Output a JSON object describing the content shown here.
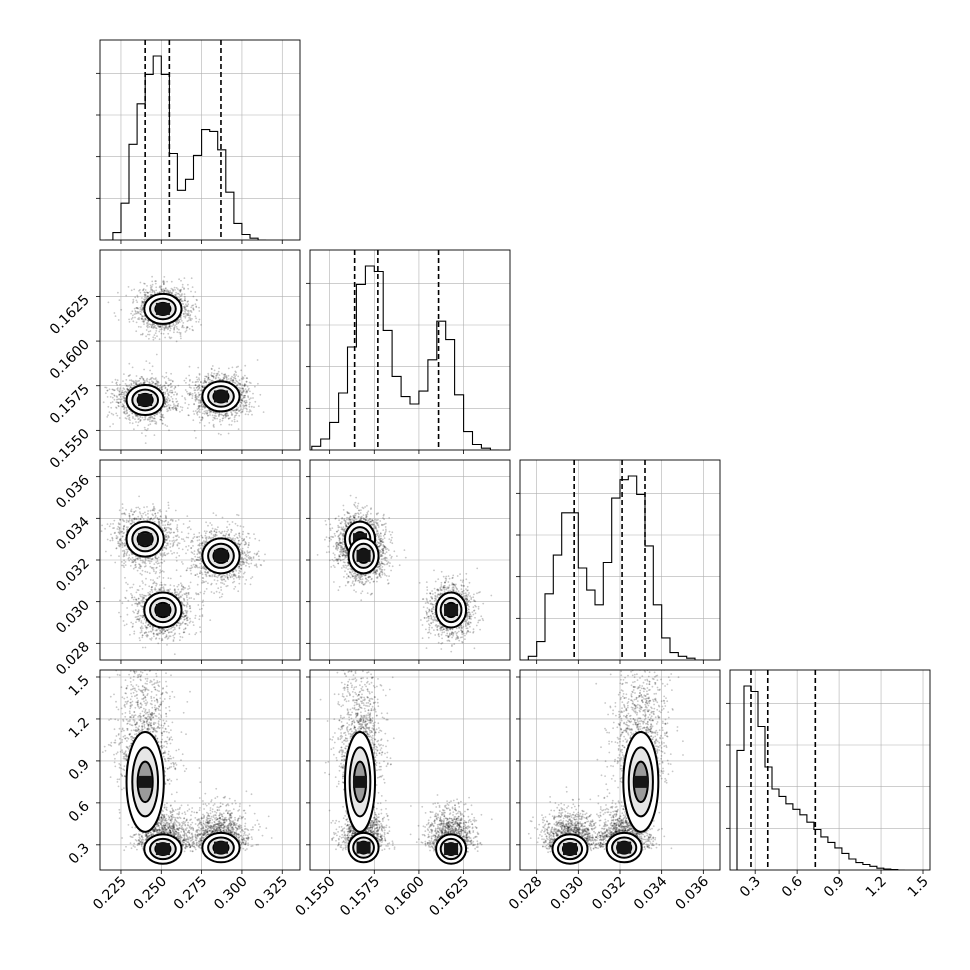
{
  "chart_data": {
    "type": "corner",
    "grid": true,
    "parameters": [
      {
        "range": [
          0.212,
          0.336
        ],
        "ticks": [
          0.225,
          0.25,
          0.275,
          0.3,
          0.325
        ],
        "tick_labels": [
          "0.225",
          "0.250",
          "0.275",
          "0.300",
          "0.325"
        ],
        "quantiles": [
          0.24,
          0.255,
          0.287
        ],
        "hist": {
          "bins": [
            0.215,
            0.22,
            0.225,
            0.23,
            0.235,
            0.24,
            0.245,
            0.25,
            0.255,
            0.26,
            0.265,
            0.27,
            0.275,
            0.28,
            0.285,
            0.29,
            0.295,
            0.3,
            0.305,
            0.31,
            0.315
          ],
          "counts": [
            0,
            0.04,
            0.2,
            0.52,
            0.74,
            0.9,
            1.0,
            0.9,
            0.47,
            0.27,
            0.33,
            0.46,
            0.6,
            0.59,
            0.49,
            0.26,
            0.09,
            0.03,
            0.01,
            0
          ]
        }
      },
      {
        "range": [
          0.1539,
          0.1651
        ],
        "ticks": [
          0.155,
          0.1575,
          0.16,
          0.1625
        ],
        "tick_labels": [
          "0.1550",
          "0.1575",
          "0.1600",
          "0.1625"
        ],
        "quantiles": [
          0.1564,
          0.1577,
          0.1611
        ],
        "hist": {
          "bins": [
            0.154,
            0.1545,
            0.155,
            0.1555,
            0.156,
            0.1565,
            0.157,
            0.1575,
            0.158,
            0.1585,
            0.159,
            0.1595,
            0.16,
            0.1605,
            0.161,
            0.1615,
            0.162,
            0.1625,
            0.163,
            0.1635,
            0.164,
            0.1645
          ],
          "counts": [
            0.02,
            0.06,
            0.15,
            0.31,
            0.56,
            0.9,
            1.0,
            0.97,
            0.65,
            0.4,
            0.29,
            0.25,
            0.32,
            0.49,
            0.7,
            0.6,
            0.3,
            0.1,
            0.03,
            0.01,
            0
          ]
        }
      },
      {
        "range": [
          0.0272,
          0.0368
        ],
        "ticks": [
          0.028,
          0.03,
          0.032,
          0.034,
          0.036
        ],
        "tick_labels": [
          "0.028",
          "0.030",
          "0.032",
          "0.034",
          "0.036"
        ],
        "quantiles": [
          0.0298,
          0.0321,
          0.0332
        ],
        "hist": {
          "bins": [
            0.0272,
            0.0276,
            0.028,
            0.0284,
            0.0288,
            0.0292,
            0.0296,
            0.03,
            0.0304,
            0.0308,
            0.0312,
            0.0316,
            0.032,
            0.0324,
            0.0328,
            0.0332,
            0.0336,
            0.034,
            0.0344,
            0.0348,
            0.0352,
            0.0356,
            0.036
          ],
          "counts": [
            0,
            0.02,
            0.1,
            0.36,
            0.57,
            0.8,
            0.8,
            0.5,
            0.38,
            0.3,
            0.53,
            0.88,
            0.98,
            1.0,
            0.9,
            0.62,
            0.3,
            0.12,
            0.04,
            0.02,
            0.01,
            0
          ]
        }
      },
      {
        "range": [
          0.12,
          1.55
        ],
        "ticks": [
          0.3,
          0.6,
          0.9,
          1.2,
          1.5
        ],
        "tick_labels": [
          "0.3",
          "0.6",
          "0.9",
          "1.2",
          "1.5"
        ],
        "quantiles": [
          0.27,
          0.39,
          0.73
        ],
        "hist": {
          "bins": [
            0.17,
            0.22,
            0.27,
            0.32,
            0.37,
            0.42,
            0.47,
            0.52,
            0.57,
            0.62,
            0.67,
            0.72,
            0.77,
            0.82,
            0.87,
            0.92,
            0.97,
            1.02,
            1.07,
            1.12,
            1.17,
            1.22,
            1.27,
            1.32,
            1.37
          ],
          "counts": [
            0.65,
            1.0,
            0.97,
            0.78,
            0.56,
            0.44,
            0.4,
            0.36,
            0.33,
            0.3,
            0.26,
            0.22,
            0.18,
            0.15,
            0.12,
            0.09,
            0.06,
            0.04,
            0.03,
            0.02,
            0.01,
            0.005,
            0.002,
            0
          ]
        }
      }
    ],
    "modes": [
      {
        "center": [
          0.251,
          0.1618,
          0.0296,
          0.27
        ],
        "sigma": [
          0.0055,
          0.0004,
          0.0004,
          0.05
        ]
      },
      {
        "center": [
          0.24,
          0.1567,
          0.033,
          0.75
        ],
        "sigma": [
          0.0055,
          0.0004,
          0.0004,
          0.17
        ]
      },
      {
        "center": [
          0.287,
          0.1569,
          0.0322,
          0.28
        ],
        "sigma": [
          0.0055,
          0.0004,
          0.0004,
          0.05
        ]
      }
    ]
  }
}
